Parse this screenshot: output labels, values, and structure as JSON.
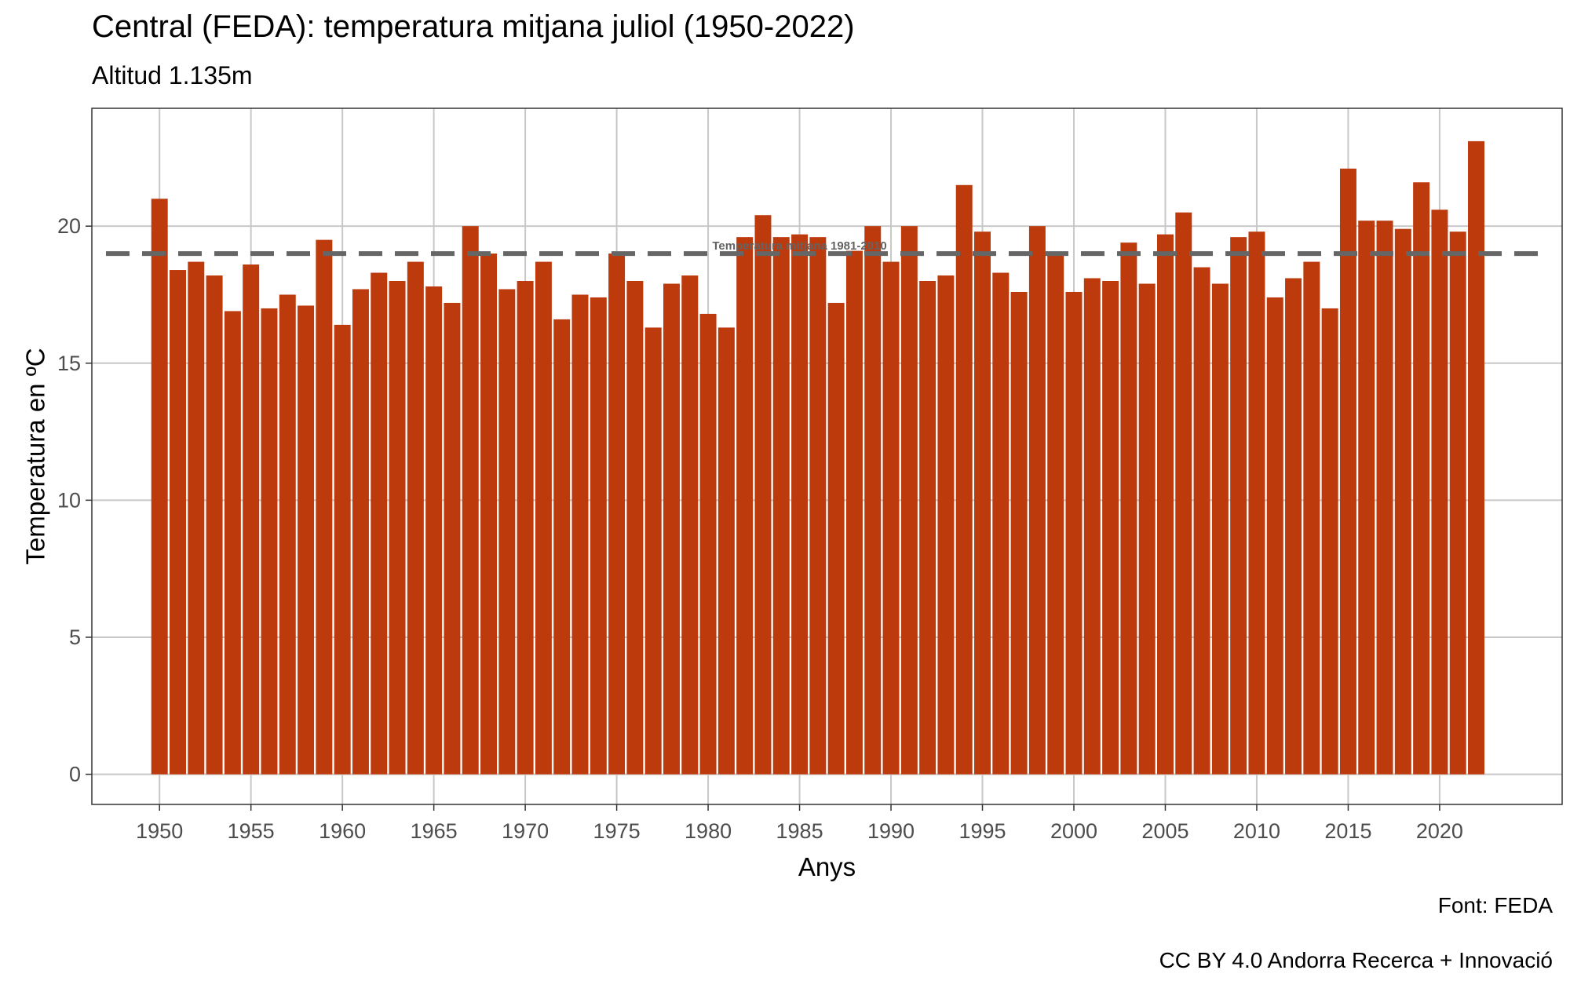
{
  "chart_data": {
    "type": "bar",
    "title": "Central (FEDA): temperatura mitjana  juliol (1950-2022)",
    "subtitle": "Altitud 1.135m",
    "xlabel": "Anys",
    "ylabel": "Temperatura en ºC",
    "x": [
      1950,
      1951,
      1952,
      1953,
      1954,
      1955,
      1956,
      1957,
      1958,
      1959,
      1960,
      1961,
      1962,
      1963,
      1964,
      1965,
      1966,
      1967,
      1968,
      1969,
      1970,
      1971,
      1972,
      1973,
      1974,
      1975,
      1976,
      1977,
      1978,
      1979,
      1980,
      1981,
      1982,
      1983,
      1984,
      1985,
      1986,
      1987,
      1988,
      1989,
      1990,
      1991,
      1992,
      1993,
      1994,
      1995,
      1996,
      1997,
      1998,
      1999,
      2000,
      2001,
      2002,
      2003,
      2004,
      2005,
      2006,
      2007,
      2008,
      2009,
      2010,
      2011,
      2012,
      2013,
      2014,
      2015,
      2016,
      2017,
      2018,
      2019,
      2020,
      2021,
      2022
    ],
    "values": [
      21.0,
      18.4,
      18.7,
      18.2,
      16.9,
      18.6,
      17.0,
      17.5,
      17.1,
      19.5,
      16.4,
      17.7,
      18.3,
      18.0,
      18.7,
      17.8,
      17.2,
      20.0,
      19.0,
      17.7,
      18.0,
      18.7,
      16.6,
      17.5,
      17.4,
      19.0,
      18.0,
      16.3,
      17.9,
      18.2,
      16.8,
      16.3,
      19.6,
      20.4,
      19.6,
      19.7,
      19.6,
      17.2,
      19.1,
      20.0,
      18.7,
      20.0,
      18.0,
      18.2,
      21.5,
      19.8,
      18.3,
      17.6,
      20.0,
      19.0,
      17.6,
      18.1,
      18.0,
      19.4,
      17.9,
      19.7,
      20.5,
      18.5,
      17.9,
      19.6,
      19.8,
      17.4,
      18.1,
      18.7,
      17.0,
      22.1,
      20.2,
      20.2,
      19.9,
      21.6,
      20.6,
      19.8,
      23.1
    ],
    "xlim": [
      1946.3,
      2026.7
    ],
    "ylim": [
      -1.1,
      24.3
    ],
    "xticks": [
      1950,
      1955,
      1960,
      1965,
      1970,
      1975,
      1980,
      1985,
      1990,
      1995,
      2000,
      2005,
      2010,
      2015,
      2020
    ],
    "yticks": [
      0,
      5,
      10,
      15,
      20
    ],
    "reference_line": {
      "value": 19.0,
      "label": "Temperatura mitjana 1981-2010",
      "label_x": 1985,
      "style": "dashed",
      "color": "#666666"
    },
    "bar_color": "#BD3A0D",
    "grid": true,
    "legend": "none",
    "colors": {
      "grid": "#c8c8c8",
      "panel_border": "#333333",
      "tick_text": "#4d4d4d"
    }
  },
  "captions": {
    "source": "Font: FEDA",
    "license": "CC BY 4.0 Andorra Recerca + Innovació"
  }
}
